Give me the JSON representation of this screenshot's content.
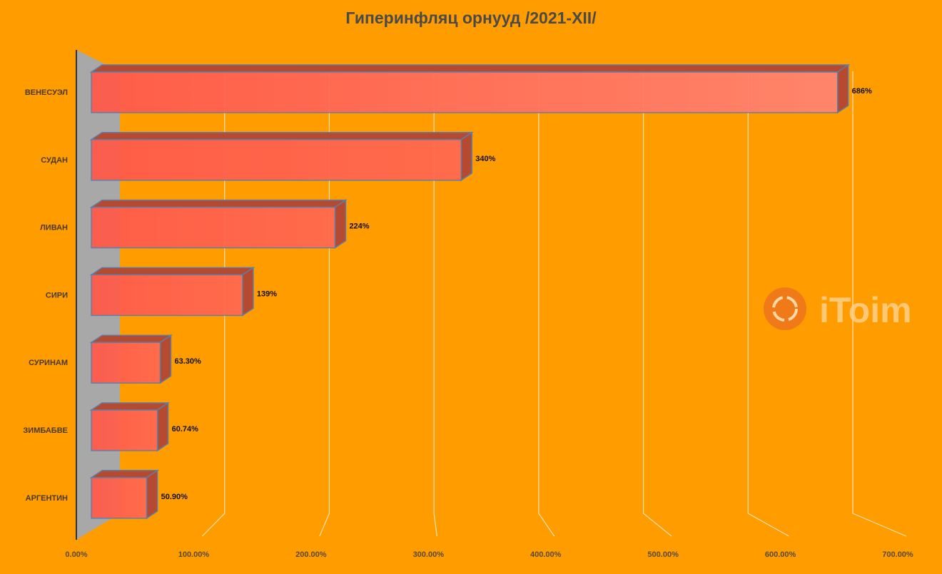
{
  "chart_data": {
    "type": "bar",
    "orientation": "horizontal",
    "style": "3d",
    "title": "Гиперинфляц орнууд /2021-XII/",
    "categories": [
      "ВЕНЕСУЭЛ",
      "СУДАН",
      "ЛИВАН",
      "СИРИ",
      "СУРИНАМ",
      "ЗИМБАБВЕ",
      "АРГЕНТИН"
    ],
    "values": [
      686,
      340,
      224,
      139,
      63.3,
      60.74,
      50.9
    ],
    "data_labels": [
      "686%",
      "340%",
      "224%",
      "139%",
      "63.30%",
      "60.74%",
      "50.90%"
    ],
    "x_ticks": [
      "0.00%",
      "100.00%",
      "200.00%",
      "300.00%",
      "400.00%",
      "500.00%",
      "600.00%",
      "700.00%"
    ],
    "xlim": [
      0,
      700
    ],
    "grid": true,
    "legend": "none",
    "colors": {
      "background": "#ff9c00",
      "bar": "#ff5a4a",
      "bar_side": "#b54a30",
      "wall": "#a8a8a8",
      "grid": "#ffe0b0"
    }
  },
  "watermark": {
    "text": "iToim"
  }
}
